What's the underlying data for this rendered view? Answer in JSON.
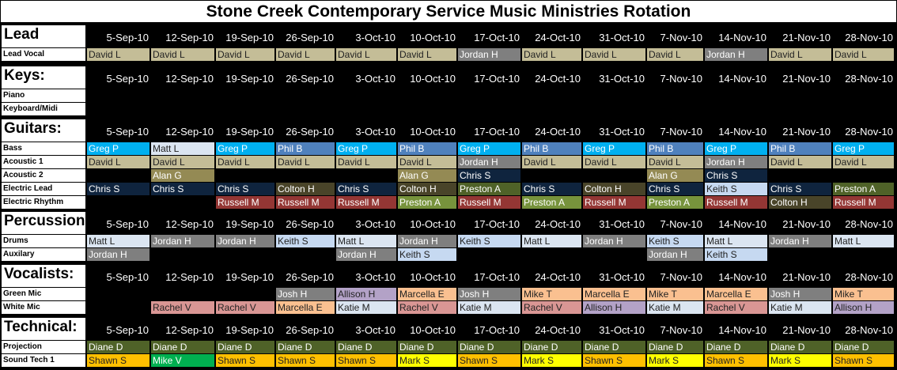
{
  "title": "Stone Creek Contemporary Service Music Ministries Rotation",
  "dates": [
    "5-Sep-10",
    "12-Sep-10",
    "19-Sep-10",
    "26-Sep-10",
    "3-Oct-10",
    "10-Oct-10",
    "17-Oct-10",
    "24-Oct-10",
    "31-Oct-10",
    "7-Nov-10",
    "14-Nov-10",
    "21-Nov-10",
    "28-Nov-10"
  ],
  "sections": [
    {
      "id": "lead",
      "header": "Lead",
      "rows": [
        {
          "label": "Lead Vocal",
          "cells": [
            [
              "David L",
              "tan"
            ],
            [
              "David L",
              "tan"
            ],
            [
              "David L",
              "tan"
            ],
            [
              "David L",
              "tan"
            ],
            [
              "David L",
              "tan"
            ],
            [
              "David L",
              "tan"
            ],
            [
              "Jordan H",
              "gray"
            ],
            [
              "David L",
              "tan"
            ],
            [
              "David L",
              "tan"
            ],
            [
              "David L",
              "tan"
            ],
            [
              "Jordan H",
              "gray"
            ],
            [
              "David L",
              "tan"
            ],
            [
              "David L",
              "tan"
            ]
          ]
        }
      ]
    },
    {
      "id": "keys",
      "header": "Keys:",
      "rows": [
        {
          "label": "Piano",
          "cells": []
        },
        {
          "label": "Keyboard/Midi",
          "cells": []
        }
      ]
    },
    {
      "id": "guitars",
      "header": "Guitars:",
      "rows": [
        {
          "label": "Bass",
          "cells": [
            [
              "Greg P",
              "blue"
            ],
            [
              "Matt L",
              "pale"
            ],
            [
              "Greg P",
              "blue"
            ],
            [
              "Phil B",
              "steel"
            ],
            [
              "Greg P",
              "blue"
            ],
            [
              "Phil B",
              "steel"
            ],
            [
              "Greg P",
              "blue"
            ],
            [
              "Phil B",
              "steel"
            ],
            [
              "Greg P",
              "blue"
            ],
            [
              "Phil B",
              "steel"
            ],
            [
              "Greg P",
              "blue"
            ],
            [
              "Phil B",
              "steel"
            ],
            [
              "Greg P",
              "blue"
            ]
          ]
        },
        {
          "label": "Acoustic 1",
          "cells": [
            [
              "David L",
              "tan"
            ],
            [
              "David L",
              "tan"
            ],
            [
              "David L",
              "tan"
            ],
            [
              "David L",
              "tan"
            ],
            [
              "David L",
              "tan"
            ],
            [
              "David L",
              "tan"
            ],
            [
              "Jordan H",
              "gray"
            ],
            [
              "David L",
              "tan"
            ],
            [
              "David L",
              "tan"
            ],
            [
              "David L",
              "tan"
            ],
            [
              "Jordan H",
              "gray"
            ],
            [
              "David L",
              "tan"
            ],
            [
              "David L",
              "tan"
            ]
          ]
        },
        {
          "label": "Acoustic 2",
          "cells": [
            [
              "",
              ""
            ],
            [
              "Alan G",
              "olive"
            ],
            [
              "",
              ""
            ],
            [
              "",
              ""
            ],
            [
              "",
              ""
            ],
            [
              "Alan G",
              "olive"
            ],
            [
              "Chris S",
              "navy"
            ],
            [
              "",
              ""
            ],
            [
              "",
              ""
            ],
            [
              "Alan G",
              "olive"
            ],
            [
              "Chris S",
              "navy"
            ],
            [
              "",
              ""
            ],
            [
              "",
              ""
            ]
          ]
        },
        {
          "label": "Electric Lead",
          "cells": [
            [
              "Chris S",
              "navy"
            ],
            [
              "Chris S",
              "navy"
            ],
            [
              "Chris S",
              "navy"
            ],
            [
              "Colton H",
              "brown"
            ],
            [
              "Chris S",
              "navy"
            ],
            [
              "Colton H",
              "brown"
            ],
            [
              "Preston A",
              "dolive"
            ],
            [
              "Chris S",
              "navy"
            ],
            [
              "Colton H",
              "brown"
            ],
            [
              "Chris S",
              "navy"
            ],
            [
              "Keith S",
              "ltblue"
            ],
            [
              "Chris S",
              "navy"
            ],
            [
              "Preston A",
              "dolive"
            ]
          ]
        },
        {
          "label": "Electric Rhythm",
          "cells": [
            [
              "",
              ""
            ],
            [
              "",
              ""
            ],
            [
              "Russell M",
              "red"
            ],
            [
              "Russell M",
              "red"
            ],
            [
              "Russell M",
              "red"
            ],
            [
              "Preston A",
              "green"
            ],
            [
              "Russell M",
              "red"
            ],
            [
              "Preston A",
              "green"
            ],
            [
              "Russell M",
              "red"
            ],
            [
              "Preston A",
              "green"
            ],
            [
              "Russell M",
              "red"
            ],
            [
              "Colton H",
              "brown"
            ],
            [
              "Russell M",
              "red"
            ]
          ]
        }
      ]
    },
    {
      "id": "percussion",
      "header": "Percussion:",
      "rows": [
        {
          "label": "Drums",
          "cells": [
            [
              "Matt L",
              "pale"
            ],
            [
              "Jordan H",
              "gray"
            ],
            [
              "Jordan H",
              "gray"
            ],
            [
              "Keith S",
              "ltblue"
            ],
            [
              "Matt L",
              "pale"
            ],
            [
              "Jordan H",
              "gray"
            ],
            [
              "Keith S",
              "ltblue"
            ],
            [
              "Matt L",
              "pale"
            ],
            [
              "Jordan H",
              "gray"
            ],
            [
              "Keith S",
              "ltblue"
            ],
            [
              "Matt L",
              "pale"
            ],
            [
              "Jordan H",
              "gray"
            ],
            [
              "Matt L",
              "pale"
            ]
          ]
        },
        {
          "label": "Auxilary",
          "cells": [
            [
              "Jordan H",
              "gray"
            ],
            [
              "",
              ""
            ],
            [
              "",
              ""
            ],
            [
              "",
              ""
            ],
            [
              "Jordan H",
              "gray"
            ],
            [
              "Keith S",
              "ltblue"
            ],
            [
              "",
              ""
            ],
            [
              "",
              ""
            ],
            [
              "",
              ""
            ],
            [
              "Jordan H",
              "gray"
            ],
            [
              "Keith S",
              "ltblue"
            ],
            [
              "",
              ""
            ],
            [
              "",
              ""
            ]
          ]
        }
      ]
    },
    {
      "id": "vocalists",
      "header": "Vocalists:",
      "rows": [
        {
          "label": "Green Mic",
          "cells": [
            [
              "",
              ""
            ],
            [
              "",
              ""
            ],
            [
              "",
              ""
            ],
            [
              "Josh H",
              "gray"
            ],
            [
              "Allison H",
              "lav"
            ],
            [
              "Marcella E",
              "peach"
            ],
            [
              "Josh H",
              "gray"
            ],
            [
              "Mike T",
              "peach"
            ],
            [
              "Marcella E",
              "peach"
            ],
            [
              "Mike T",
              "peach"
            ],
            [
              "Marcella E",
              "peach"
            ],
            [
              "Josh H",
              "gray"
            ],
            [
              "Mike T",
              "peach"
            ]
          ]
        },
        {
          "label": "White Mic",
          "cells": [
            [
              "",
              ""
            ],
            [
              "Rachel V",
              "rose"
            ],
            [
              "Rachel V",
              "rose"
            ],
            [
              "Marcella E",
              "peach"
            ],
            [
              "Katie M",
              "pale"
            ],
            [
              "Rachel V",
              "rose"
            ],
            [
              "Katie M",
              "pale"
            ],
            [
              "Rachel V",
              "rose"
            ],
            [
              "Allison H",
              "lav"
            ],
            [
              "Katie M",
              "pale"
            ],
            [
              "Rachel V",
              "rose"
            ],
            [
              "Katie M",
              "pale"
            ],
            [
              "Allison H",
              "lav"
            ]
          ]
        }
      ]
    },
    {
      "id": "technical",
      "header": "Technical:",
      "rows": [
        {
          "label": "Projection",
          "cells": [
            [
              "Diane D",
              "dolive"
            ],
            [
              "Diane D",
              "dolive"
            ],
            [
              "Diane D",
              "dolive"
            ],
            [
              "Diane D",
              "dolive"
            ],
            [
              "Diane D",
              "dolive"
            ],
            [
              "Diane D",
              "dolive"
            ],
            [
              "Diane D",
              "dolive"
            ],
            [
              "Diane D",
              "dolive"
            ],
            [
              "Diane D",
              "dolive"
            ],
            [
              "Diane D",
              "dolive"
            ],
            [
              "Diane D",
              "dolive"
            ],
            [
              "Diane D",
              "dolive"
            ],
            [
              "Diane D",
              "dolive"
            ]
          ]
        },
        {
          "label": "Sound Tech 1",
          "cells": [
            [
              "Shawn S",
              "gold"
            ],
            [
              "Mike V",
              "lime"
            ],
            [
              "Shawn S",
              "gold"
            ],
            [
              "Shawn S",
              "gold"
            ],
            [
              "Shawn S",
              "gold"
            ],
            [
              "Mark S",
              "yellow"
            ],
            [
              "Shawn S",
              "gold"
            ],
            [
              "Mark S",
              "yellow"
            ],
            [
              "Shawn S",
              "gold"
            ],
            [
              "Mark S",
              "yellow"
            ],
            [
              "Shawn S",
              "gold"
            ],
            [
              "Mark S",
              "yellow"
            ],
            [
              "Shawn S",
              "gold"
            ]
          ]
        }
      ]
    }
  ]
}
